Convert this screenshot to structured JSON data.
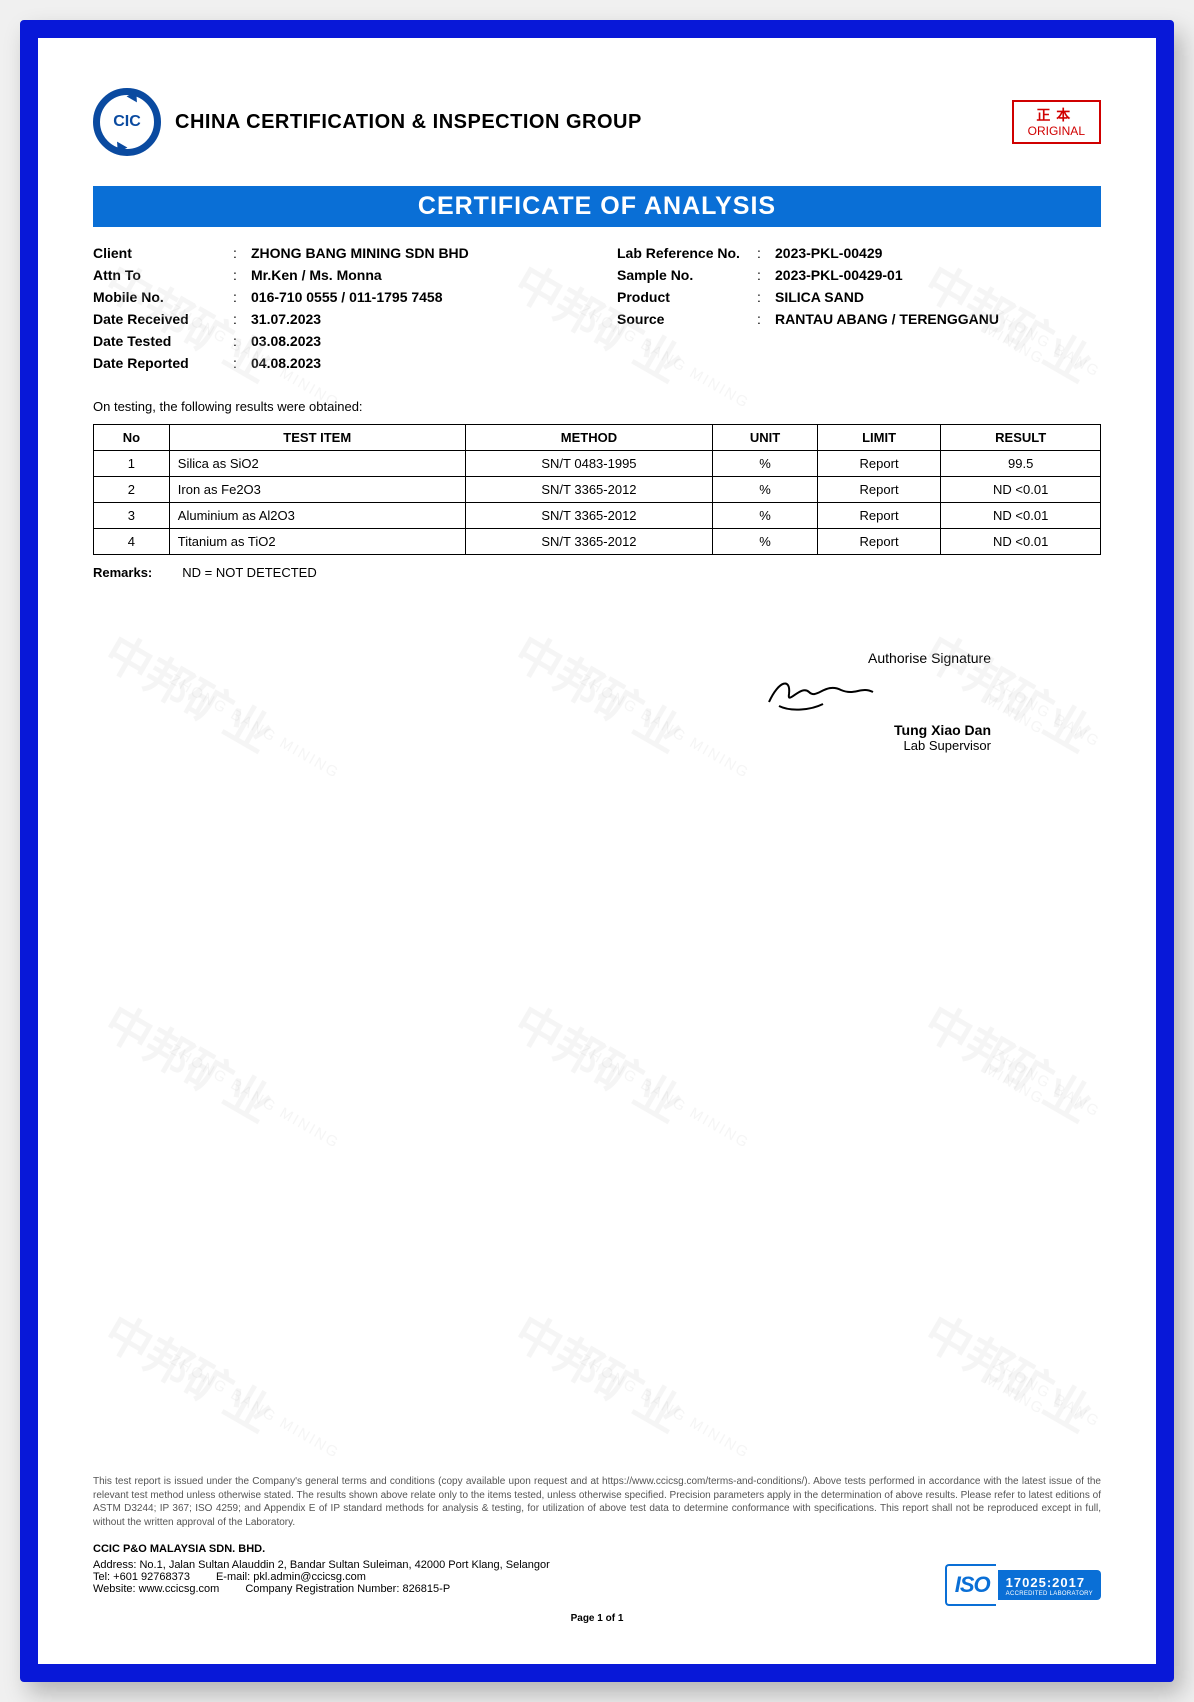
{
  "header": {
    "logo_text": "CIC",
    "company": "CHINA CERTIFICATION & INSPECTION GROUP",
    "stamp_cn": "正本",
    "stamp_en": "ORIGINAL"
  },
  "title": "CERTIFICATE OF ANALYSIS",
  "info_left": [
    {
      "label": "Client",
      "value": "ZHONG BANG MINING SDN BHD"
    },
    {
      "label": "Attn To",
      "value": "Mr.Ken / Ms. Monna"
    },
    {
      "label": "Mobile No.",
      "value": "016-710 0555 / 011-1795 7458"
    },
    {
      "label": "Date Received",
      "value": "31.07.2023"
    },
    {
      "label": "Date Tested",
      "value": "03.08.2023"
    },
    {
      "label": "Date Reported",
      "value": "04.08.2023"
    }
  ],
  "info_right": [
    {
      "label": "Lab Reference No.",
      "value": "2023-PKL-00429"
    },
    {
      "label": "Sample No.",
      "value": "2023-PKL-00429-01"
    },
    {
      "label": "Product",
      "value": "SILICA SAND"
    },
    {
      "label": "Source",
      "value": "RANTAU ABANG / TERENGGANU"
    }
  ],
  "intro": "On testing, the following results were obtained:",
  "table": {
    "headers": [
      "No",
      "TEST ITEM",
      "METHOD",
      "UNIT",
      "LIMIT",
      "RESULT"
    ],
    "rows": [
      [
        "1",
        "Silica as SiO2",
        "SN/T 0483-1995",
        "%",
        "Report",
        "99.5"
      ],
      [
        "2",
        "Iron as Fe2O3",
        "SN/T 3365-2012",
        "%",
        "Report",
        "ND <0.01"
      ],
      [
        "3",
        "Aluminium as Al2O3",
        "SN/T 3365-2012",
        "%",
        "Report",
        "ND <0.01"
      ],
      [
        "4",
        "Titanium as TiO2",
        "SN/T 3365-2012",
        "%",
        "Report",
        "ND <0.01"
      ]
    ]
  },
  "remarks_label": "Remarks:",
  "remarks_text": "ND = NOT DETECTED",
  "signature": {
    "label": "Authorise Signature",
    "name": "Tung Xiao Dan",
    "title": "Lab Supervisor"
  },
  "disclaimer": "This test report is issued under the Company's general terms and conditions (copy available upon request and at https://www.ccicsg.com/terms-and-conditions/). Above tests performed in accordance with the latest issue of the relevant test method unless otherwise stated. The results shown above relate only to the items tested, unless otherwise specified. Precision parameters apply in the determination of above results. Please refer to latest editions of ASTM D3244; IP 367; ISO 4259; and Appendix E of IP standard methods for analysis & testing, for utilization of above test data to determine conformance with specifications. This report shall not be reproduced except in full, without the written approval of the Laboratory.",
  "footer_company": "CCIC P&O MALAYSIA SDN. BHD.",
  "footer_lines": {
    "address": "Address: No.1, Jalan Sultan Alauddin 2, Bandar Sultan Suleiman, 42000 Port Klang, Selangor",
    "tel": "Tel: +601 92768373",
    "email": "E-mail: pkl.admin@ccicsg.com",
    "website": "Website: www.ccicsg.com",
    "regno": "Company Registration Number: 826815-P"
  },
  "iso": {
    "left": "ISO",
    "num": "17025:2017",
    "txt": "ACCREDITED LABORATORY"
  },
  "page": "Page 1 of 1",
  "watermark_main": "中邦矿业",
  "watermark_sub": "ZHONG BANG MINING",
  "colors": {
    "frame_border": "#0818d8",
    "title_bg": "#0a6fd6",
    "logo": "#0a4aa0",
    "stamp": "#d00000"
  }
}
